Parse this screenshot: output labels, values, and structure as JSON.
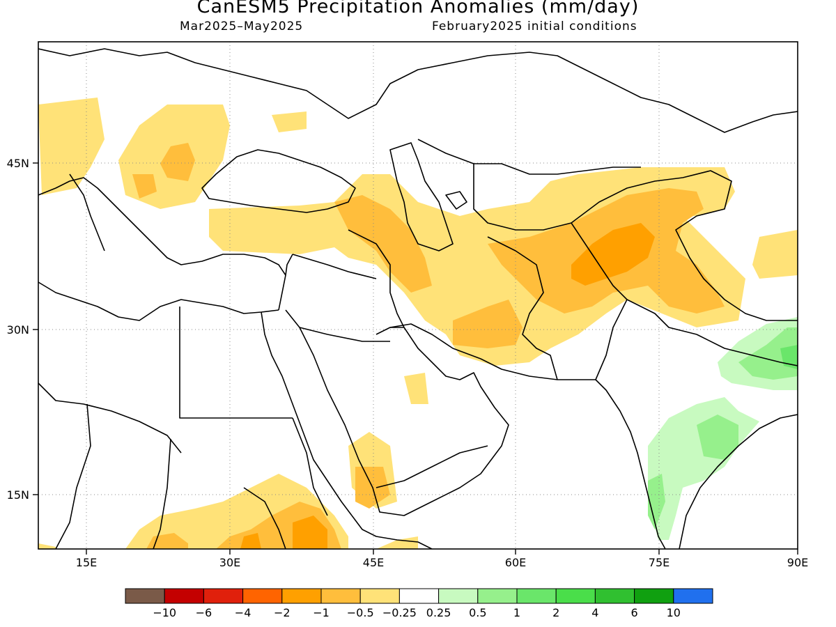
{
  "title": "CanESM5 Precipitation Anomalies (mm/day)",
  "period": "Mar2025–May2025",
  "init": "February2025 initial conditions",
  "lon_ticks": [
    "15E",
    "30E",
    "45E",
    "60E",
    "75E",
    "90E"
  ],
  "lat_ticks": [
    "45N",
    "30N",
    "15N"
  ],
  "colorbar": {
    "labels": [
      "−10",
      "−6",
      "−4",
      "−2",
      "−1",
      "−0.5",
      "−0.25",
      "0.25",
      "0.5",
      "1",
      "2",
      "4",
      "6",
      "10"
    ],
    "colors": [
      "#7a5a48",
      "#c40000",
      "#e0200c",
      "#ff6400",
      "#ffa000",
      "#ffbe3c",
      "#ffe278",
      "#ffffff",
      "#c8fac0",
      "#96f08c",
      "#6ae66a",
      "#4ade4a",
      "#30c030",
      "#10a010",
      "#2070ee"
    ]
  },
  "map": {
    "lon_range": [
      10,
      90
    ],
    "lat_range": [
      10,
      55
    ]
  }
}
